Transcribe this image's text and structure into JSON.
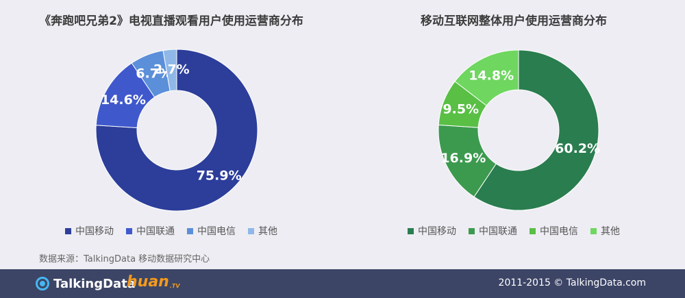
{
  "chart_data": [
    {
      "type": "pie",
      "title": "《奔跑吧兄弟2》电视直播观看用户使用运营商分布",
      "categories": [
        "中国移动",
        "中国联通",
        "中国电信",
        "其他"
      ],
      "values": [
        75.9,
        14.6,
        6.7,
        2.7
      ],
      "labels": [
        "75.9%",
        "14.6%",
        "6.7%",
        "2.7%"
      ],
      "colors": [
        "#2c3e9a",
        "#3f59cc",
        "#5b8fd9",
        "#8fb8e8"
      ],
      "legend": "bottom"
    },
    {
      "type": "pie",
      "title": "移动互联网整体用户使用运营商分布",
      "categories": [
        "中国移动",
        "中国联通",
        "中国电信",
        "其他"
      ],
      "values": [
        60.2,
        16.9,
        9.5,
        14.8
      ],
      "labels": [
        "60.2%",
        "16.9%",
        "9.5%",
        "14.8%"
      ],
      "colors": [
        "#2a7d4f",
        "#3c9a4e",
        "#59bf45",
        "#6fd660"
      ],
      "legend": "bottom"
    }
  ],
  "source_text": "数据来源：TalkingData 移动数据研究中心",
  "footer": {
    "logo_text": "TalkingData",
    "partner_logo": "huan",
    "partner_logo_suffix": ".TV",
    "copyright": "2011-2015 © TalkingData.com"
  }
}
